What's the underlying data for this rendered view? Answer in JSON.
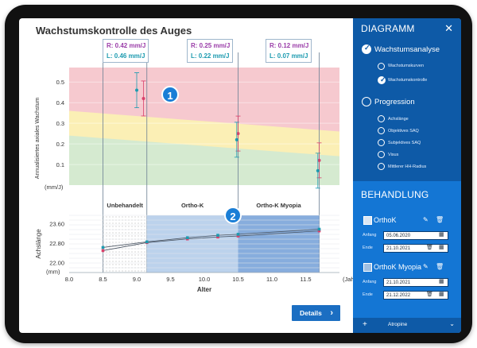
{
  "title": "Wachstumskontrolle des Auges",
  "measurements": [
    {
      "r": "R: 0.42 mm/J",
      "l": "L: 0.46 mm/J"
    },
    {
      "r": "R: 0.25 mm/J",
      "l": "L: 0.22 mm/J"
    },
    {
      "r": "R: 0.12 mm/J",
      "l": "L: 0.07 mm/J"
    }
  ],
  "badges": [
    "1",
    "2"
  ],
  "chart_data": [
    {
      "type": "scatter",
      "ylabel": "Annualisiertes axiales Wachstum",
      "yunit": "(mm/J)",
      "yticks": [
        "0.5",
        "0.4",
        "0.3",
        "0.2",
        "0.1"
      ],
      "ylim": [
        0,
        0.57
      ],
      "xlim": [
        8.0,
        12.0
      ],
      "series": [
        {
          "name": "R",
          "color": "#d9416b",
          "points": [
            {
              "x": 9.1,
              "y": 0.42
            },
            {
              "x": 10.5,
              "y": 0.25
            },
            {
              "x": 11.7,
              "y": 0.12
            }
          ]
        },
        {
          "name": "L",
          "color": "#1d9bb0",
          "points": [
            {
              "x": 9.0,
              "y": 0.46
            },
            {
              "x": 10.48,
              "y": 0.22
            },
            {
              "x": 11.68,
              "y": 0.07
            }
          ]
        }
      ],
      "zones": [
        {
          "name": "red",
          "color": "#f6c9cf"
        },
        {
          "name": "yellow",
          "color": "#fbefb5"
        },
        {
          "name": "green",
          "color": "#d5ead0"
        }
      ]
    },
    {
      "type": "line",
      "ylabel": "Achslänge",
      "yunit": "(mm)",
      "xlabel": "Alter",
      "xunit": "(Jahre)",
      "yticks": [
        "23.60",
        "22.80",
        "22.00"
      ],
      "ylim": [
        21.6,
        23.95
      ],
      "xticks": [
        "8.0",
        "8.5",
        "9.0",
        "9.5",
        "10.0",
        "10.5",
        "11.0",
        "11.5"
      ],
      "xlim": [
        8.0,
        12.0
      ],
      "periods": [
        {
          "label": "Unbehandelt",
          "from": 8.5,
          "to": 9.15
        },
        {
          "label": "Ortho-K",
          "from": 9.15,
          "to": 10.5
        },
        {
          "label": "Ortho-K Myopia",
          "from": 10.5,
          "to": 11.7
        }
      ],
      "series": [
        {
          "name": "R",
          "color": "#d9416b",
          "points": [
            {
              "x": 8.5,
              "y": 22.5
            },
            {
              "x": 9.15,
              "y": 22.83
            },
            {
              "x": 9.75,
              "y": 22.98
            },
            {
              "x": 10.2,
              "y": 23.06
            },
            {
              "x": 10.5,
              "y": 23.1
            },
            {
              "x": 11.7,
              "y": 23.31
            }
          ]
        },
        {
          "name": "L",
          "color": "#1d9bb0",
          "points": [
            {
              "x": 8.5,
              "y": 22.63
            },
            {
              "x": 9.15,
              "y": 22.86
            },
            {
              "x": 9.75,
              "y": 23.03
            },
            {
              "x": 10.2,
              "y": 23.13
            },
            {
              "x": 10.5,
              "y": 23.17
            },
            {
              "x": 11.7,
              "y": 23.38
            }
          ]
        }
      ]
    }
  ],
  "details_button": "Details",
  "panel": {
    "diagram_title": "DIAGRAMM",
    "close": "✕",
    "growth_analysis": "Wachstumsanalyse",
    "growth_items": [
      "Wachstumskurven",
      "Wachstumskontrolle"
    ],
    "progression": "Progression",
    "progression_items": [
      "Achslänge",
      "Objektives SAQ",
      "Subjektives SAQ",
      "Visus",
      "Mittlerer HH-Radius"
    ],
    "treatment_title": "BEHANDLUNG",
    "treatments": [
      {
        "name": "OrthoK",
        "start_label": "Anfang",
        "start": "05.06.2020",
        "end_label": "Ende",
        "end": "21.10.2021"
      },
      {
        "name": "OrthoK Myopia",
        "start_label": "Anfang",
        "start": "21.10.2021",
        "end_label": "Ende",
        "end": "21.12.2022"
      }
    ],
    "add_label": "+",
    "add_item": "Atropine"
  }
}
